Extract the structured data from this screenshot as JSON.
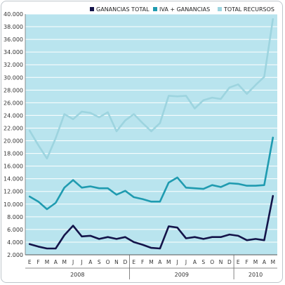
{
  "chart_data": {
    "type": "line",
    "title": "",
    "xlabel": "",
    "ylabel": "",
    "ylim": [
      2000,
      40000
    ],
    "y_ticks": [
      "2.000",
      "4.000",
      "6.000",
      "8.000",
      "10.000",
      "12.000",
      "14.000",
      "16.000",
      "18.000",
      "20.000",
      "22.000",
      "24.000",
      "26.000",
      "28.000",
      "30.000",
      "32.000",
      "34.000",
      "36.000",
      "38.000",
      "40.000"
    ],
    "y_tick_values": [
      2000,
      4000,
      6000,
      8000,
      10000,
      12000,
      14000,
      16000,
      18000,
      20000,
      22000,
      24000,
      26000,
      28000,
      30000,
      32000,
      34000,
      36000,
      38000,
      40000
    ],
    "x": [
      "E",
      "F",
      "M",
      "A",
      "M",
      "J",
      "J",
      "A",
      "S",
      "O",
      "N",
      "D",
      "E",
      "F",
      "M",
      "A",
      "M",
      "J",
      "J",
      "A",
      "S",
      "O",
      "N",
      "D",
      "E",
      "F",
      "M",
      "A",
      "M"
    ],
    "years": [
      {
        "label": "2008",
        "start": 0,
        "end": 11
      },
      {
        "label": "2009",
        "start": 12,
        "end": 23
      },
      {
        "label": "2010",
        "start": 24,
        "end": 28
      }
    ],
    "grid": true,
    "plot_background": "#b9e4ee",
    "legend_position": "top",
    "series": [
      {
        "name": "GANANCIAS TOTAL",
        "color": "#14144a",
        "values": [
          3700,
          3300,
          3000,
          3000,
          5100,
          6600,
          4900,
          5000,
          4500,
          4800,
          4500,
          4800,
          4000,
          3600,
          3100,
          3000,
          6500,
          6300,
          4600,
          4800,
          4500,
          4800,
          4800,
          5200,
          5000,
          4300,
          4500,
          4300,
          11300
        ]
      },
      {
        "name": "IVA + GANANCIAS",
        "color": "#1f9bb0",
        "values": [
          11200,
          10400,
          9200,
          10200,
          12600,
          13800,
          12600,
          12800,
          12500,
          12500,
          11500,
          12100,
          11100,
          10800,
          10400,
          10400,
          13400,
          14200,
          12600,
          12500,
          12400,
          13000,
          12700,
          13300,
          13200,
          12900,
          12900,
          13000,
          20500
        ]
      },
      {
        "name": "TOTAL RECURSOS",
        "color": "#9dd4df",
        "values": [
          21600,
          19300,
          17200,
          20400,
          24200,
          23400,
          24600,
          24400,
          23700,
          24500,
          21500,
          23200,
          24200,
          22800,
          21500,
          22800,
          27100,
          27000,
          27100,
          25100,
          26400,
          26800,
          26600,
          28400,
          28900,
          27400,
          28800,
          30100,
          39200
        ]
      }
    ]
  }
}
